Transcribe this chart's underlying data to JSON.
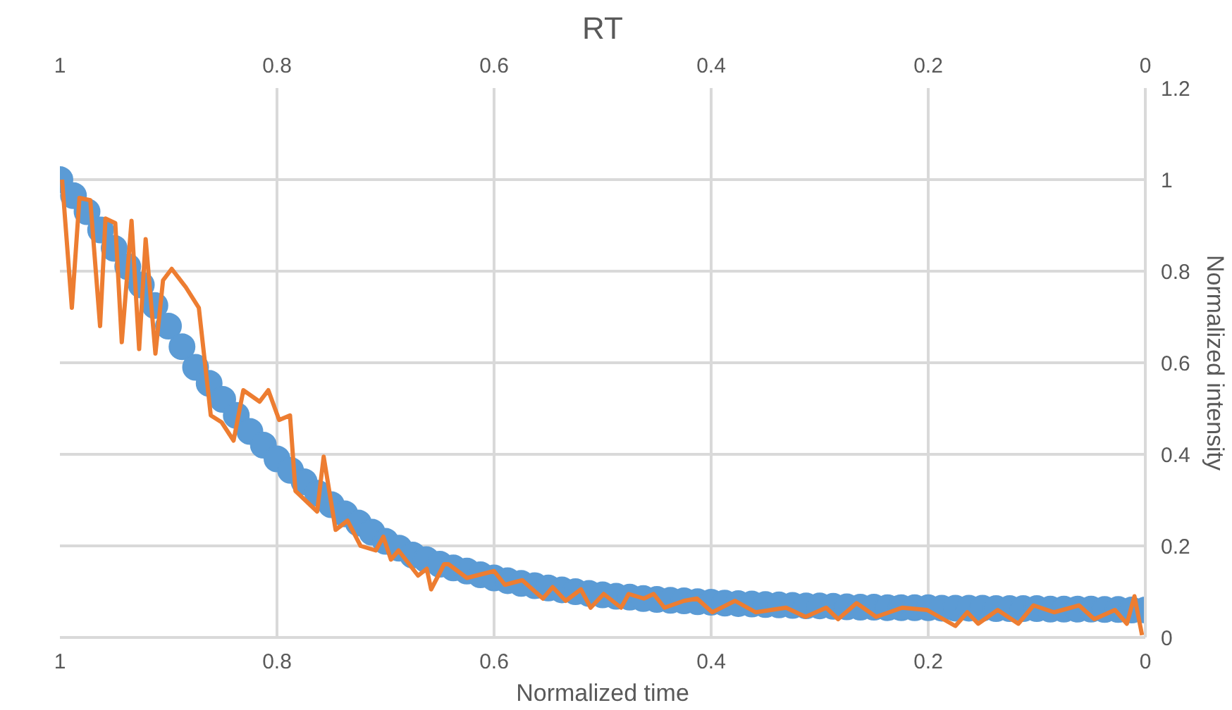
{
  "chart_data": {
    "type": "scatter",
    "title": "RT",
    "xlabel": "Normalized time",
    "ylabel": "Normalized intensity",
    "xlim": [
      1,
      0
    ],
    "xticks": [
      1,
      0.8,
      0.6,
      0.4,
      0.2,
      0
    ],
    "x2lim": [
      1,
      0
    ],
    "x2ticks": [
      1,
      0.8,
      0.6,
      0.4,
      0.2,
      0
    ],
    "ylim": [
      0,
      1.2
    ],
    "yticks": [
      0,
      0.2,
      0.4,
      0.6,
      0.8,
      1,
      1.2
    ],
    "grid": true,
    "series": [
      {
        "marker": "circle",
        "color": "#5b9bd5",
        "x": [
          1,
          0.9875,
          0.975,
          0.9625,
          0.95,
          0.9375,
          0.925,
          0.9125,
          0.9,
          0.8875,
          0.875,
          0.8625,
          0.85,
          0.8375,
          0.825,
          0.8125,
          0.8,
          0.7875,
          0.775,
          0.7625,
          0.75,
          0.7375,
          0.725,
          0.7125,
          0.7,
          0.6875,
          0.675,
          0.6625,
          0.65,
          0.6375,
          0.625,
          0.6125,
          0.6,
          0.5875,
          0.575,
          0.5625,
          0.55,
          0.5375,
          0.525,
          0.5125,
          0.5,
          0.4875,
          0.475,
          0.4625,
          0.45,
          0.4375,
          0.425,
          0.4125,
          0.4,
          0.3875,
          0.375,
          0.3625,
          0.35,
          0.3375,
          0.325,
          0.3125,
          0.3,
          0.2875,
          0.275,
          0.2625,
          0.25,
          0.2375,
          0.225,
          0.2125,
          0.2,
          0.1875,
          0.175,
          0.1625,
          0.15,
          0.1375,
          0.125,
          0.1125,
          0.1,
          0.0875,
          0.075,
          0.0625,
          0.05,
          0.0375,
          0.025,
          0.0125,
          0
        ],
        "values": [
          1.0,
          0.965,
          0.93,
          0.89,
          0.85,
          0.81,
          0.77,
          0.725,
          0.68,
          0.635,
          0.59,
          0.555,
          0.52,
          0.485,
          0.45,
          0.42,
          0.39,
          0.365,
          0.34,
          0.315,
          0.29,
          0.27,
          0.25,
          0.23,
          0.21,
          0.195,
          0.18,
          0.17,
          0.16,
          0.152,
          0.145,
          0.137,
          0.13,
          0.124,
          0.118,
          0.113,
          0.108,
          0.104,
          0.1,
          0.096,
          0.093,
          0.09,
          0.088,
          0.085,
          0.083,
          0.081,
          0.08,
          0.078,
          0.077,
          0.075,
          0.074,
          0.073,
          0.072,
          0.071,
          0.07,
          0.069,
          0.069,
          0.068,
          0.067,
          0.066,
          0.066,
          0.065,
          0.065,
          0.065,
          0.065,
          0.064,
          0.064,
          0.064,
          0.064,
          0.063,
          0.063,
          0.063,
          0.063,
          0.062,
          0.062,
          0.062,
          0.062,
          0.061,
          0.061,
          0.06,
          0.06
        ]
      },
      {
        "type": "line",
        "color": "#ed7d31",
        "x": [
          0.998,
          0.989,
          0.982,
          0.972,
          0.963,
          0.958,
          0.949,
          0.943,
          0.934,
          0.927,
          0.921,
          0.912,
          0.905,
          0.897,
          0.884,
          0.872,
          0.861,
          0.851,
          0.84,
          0.831,
          0.816,
          0.808,
          0.798,
          0.788,
          0.783,
          0.763,
          0.757,
          0.746,
          0.735,
          0.723,
          0.709,
          0.702,
          0.695,
          0.688,
          0.67,
          0.662,
          0.658,
          0.646,
          0.642,
          0.625,
          0.6,
          0.59,
          0.574,
          0.555,
          0.546,
          0.534,
          0.52,
          0.511,
          0.499,
          0.483,
          0.476,
          0.462,
          0.453,
          0.443,
          0.425,
          0.413,
          0.399,
          0.378,
          0.359,
          0.331,
          0.313,
          0.294,
          0.283,
          0.266,
          0.248,
          0.224,
          0.201,
          0.175,
          0.164,
          0.154,
          0.136,
          0.117,
          0.103,
          0.084,
          0.061,
          0.047,
          0.028,
          0.017,
          0.01,
          0.003
        ],
        "values": [
          1.0,
          0.72,
          0.96,
          0.955,
          0.68,
          0.915,
          0.905,
          0.645,
          0.91,
          0.63,
          0.87,
          0.62,
          0.78,
          0.805,
          0.765,
          0.72,
          0.485,
          0.47,
          0.43,
          0.54,
          0.515,
          0.54,
          0.475,
          0.485,
          0.32,
          0.275,
          0.395,
          0.235,
          0.255,
          0.2,
          0.19,
          0.22,
          0.17,
          0.19,
          0.135,
          0.15,
          0.105,
          0.16,
          0.16,
          0.13,
          0.145,
          0.115,
          0.125,
          0.085,
          0.11,
          0.08,
          0.105,
          0.065,
          0.095,
          0.065,
          0.095,
          0.085,
          0.095,
          0.065,
          0.08,
          0.085,
          0.055,
          0.08,
          0.055,
          0.065,
          0.045,
          0.065,
          0.04,
          0.075,
          0.045,
          0.065,
          0.06,
          0.025,
          0.055,
          0.03,
          0.06,
          0.03,
          0.07,
          0.055,
          0.07,
          0.04,
          0.06,
          0.03,
          0.09,
          0.005
        ]
      }
    ]
  }
}
